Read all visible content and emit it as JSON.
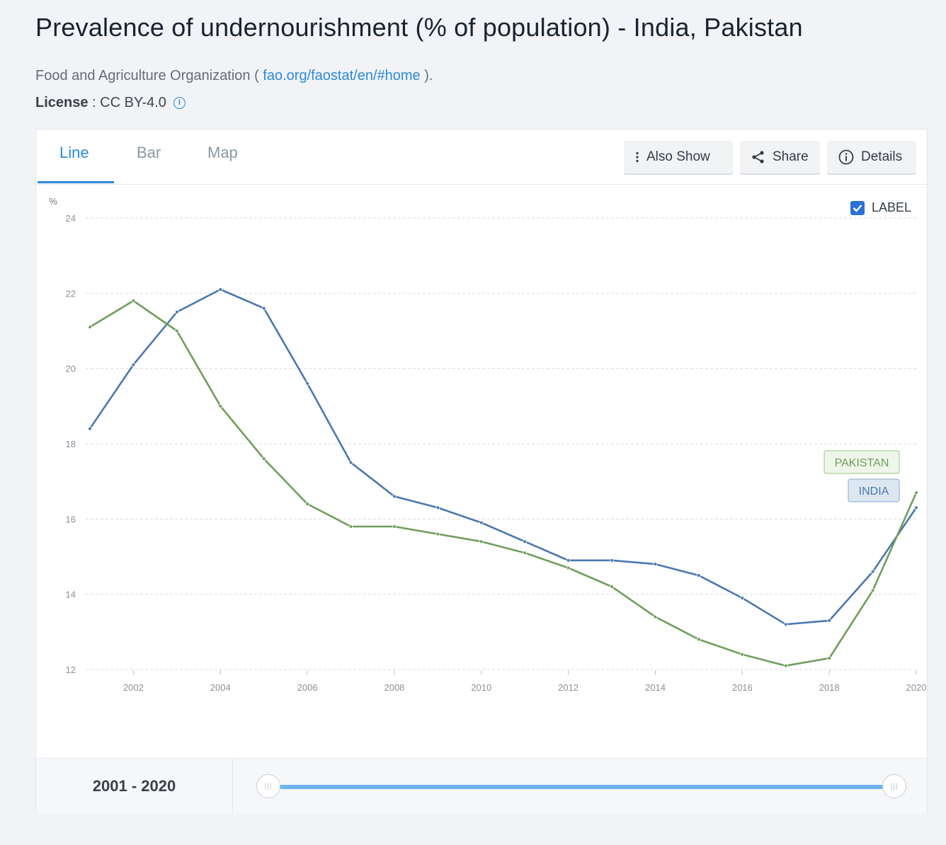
{
  "page": {
    "title": "Prevalence of undernourishment (% of population) - India, Pakistan",
    "source_prefix": "Food and Agriculture Organization ( ",
    "source_link": "fao.org/faostat/en/#home",
    "source_suffix": " ).",
    "license_label": "License",
    "license_sep": " : ",
    "license_value": "CC BY-4.0",
    "license_info_icon": "info-circle-icon"
  },
  "tabs": [
    {
      "label": "Line",
      "active": true
    },
    {
      "label": "Bar",
      "active": false
    },
    {
      "label": "Map",
      "active": false
    }
  ],
  "toolbar": {
    "also_show": {
      "label": "Also Show",
      "icon": "vertical-dots-icon"
    },
    "share": {
      "label": "Share",
      "icon": "share-icon"
    },
    "details": {
      "label": "Details",
      "icon": "info-circle-icon"
    }
  },
  "label_toggle": {
    "label": "LABEL",
    "checked": true
  },
  "range": {
    "text": "2001 - 2020",
    "start": 2001,
    "end": 2020
  },
  "colors": {
    "india": "#4a78ad",
    "pakistan": "#6f9e5c",
    "accent": "#2c8ad8"
  },
  "chart_data": {
    "type": "line",
    "title": "",
    "xlabel": "",
    "ylabel": "%",
    "xlim": [
      2001,
      2020
    ],
    "ylim": [
      12,
      24
    ],
    "yticks": [
      12,
      14,
      16,
      18,
      20,
      22,
      24
    ],
    "xticks": [
      2002,
      2004,
      2006,
      2008,
      2010,
      2012,
      2014,
      2016,
      2018,
      2020
    ],
    "grid": true,
    "x": [
      2001,
      2002,
      2003,
      2004,
      2005,
      2006,
      2007,
      2008,
      2009,
      2010,
      2011,
      2012,
      2013,
      2014,
      2015,
      2016,
      2017,
      2018,
      2019,
      2020
    ],
    "series": [
      {
        "name": "INDIA",
        "color": "#4a78ad",
        "values": [
          18.4,
          20.1,
          21.5,
          22.1,
          21.6,
          19.6,
          17.5,
          16.6,
          16.3,
          15.9,
          15.4,
          14.9,
          14.9,
          14.8,
          14.5,
          13.9,
          13.2,
          13.3,
          14.6,
          16.3
        ]
      },
      {
        "name": "PAKISTAN",
        "color": "#6f9e5c",
        "values": [
          21.1,
          21.8,
          21.0,
          19.0,
          17.6,
          16.4,
          15.8,
          15.8,
          15.6,
          15.4,
          15.1,
          14.7,
          14.2,
          13.4,
          12.8,
          12.4,
          12.1,
          12.3,
          14.1,
          16.7
        ]
      }
    ]
  }
}
